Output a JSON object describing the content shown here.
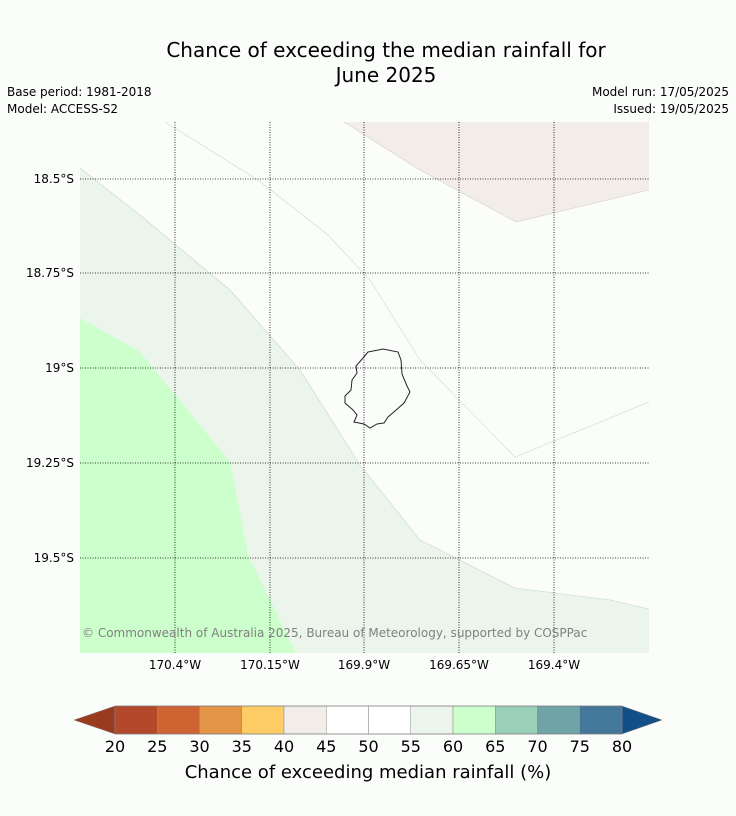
{
  "header": {
    "title": "Chance of exceeding the median rainfall for\nJune 2025",
    "base_period": "Base period: 1981-2018",
    "model": "Model: ACCESS-S2",
    "model_run": "Model run: 17/05/2025",
    "issued": "Issued: 19/05/2025"
  },
  "map": {
    "lat_labels": [
      "18.5°S",
      "18.75°S",
      "19°S",
      "19.25°S",
      "19.5°S"
    ],
    "lon_labels": [
      "170.4°W",
      "170.15°W",
      "169.9°W",
      "169.65°W",
      "169.4°W"
    ],
    "copyright": "© Commonwealth of Australia 2025, Bureau of Meteorology, supported by COSPPac",
    "zone_colors": {
      "c40_45": "#f2ede8",
      "c55_60": "#ebf5eb",
      "c60_65": "#ccffcc"
    }
  },
  "colorbar": {
    "title": "Chance of exceeding median rainfall (%)",
    "ticks": [
      "20",
      "25",
      "30",
      "35",
      "40",
      "45",
      "50",
      "55",
      "60",
      "65",
      "70",
      "75",
      "80"
    ],
    "below_color": "#9a3a1f",
    "above_color": "#134f87",
    "colors": [
      "#b3492a",
      "#cf6432",
      "#e29646",
      "#fecd66",
      "#f2ede8",
      "#ffffff",
      "#ffffff",
      "#ebf5eb",
      "#ccffcc",
      "#9ccfb8",
      "#70a3a6",
      "#43789a"
    ]
  }
}
